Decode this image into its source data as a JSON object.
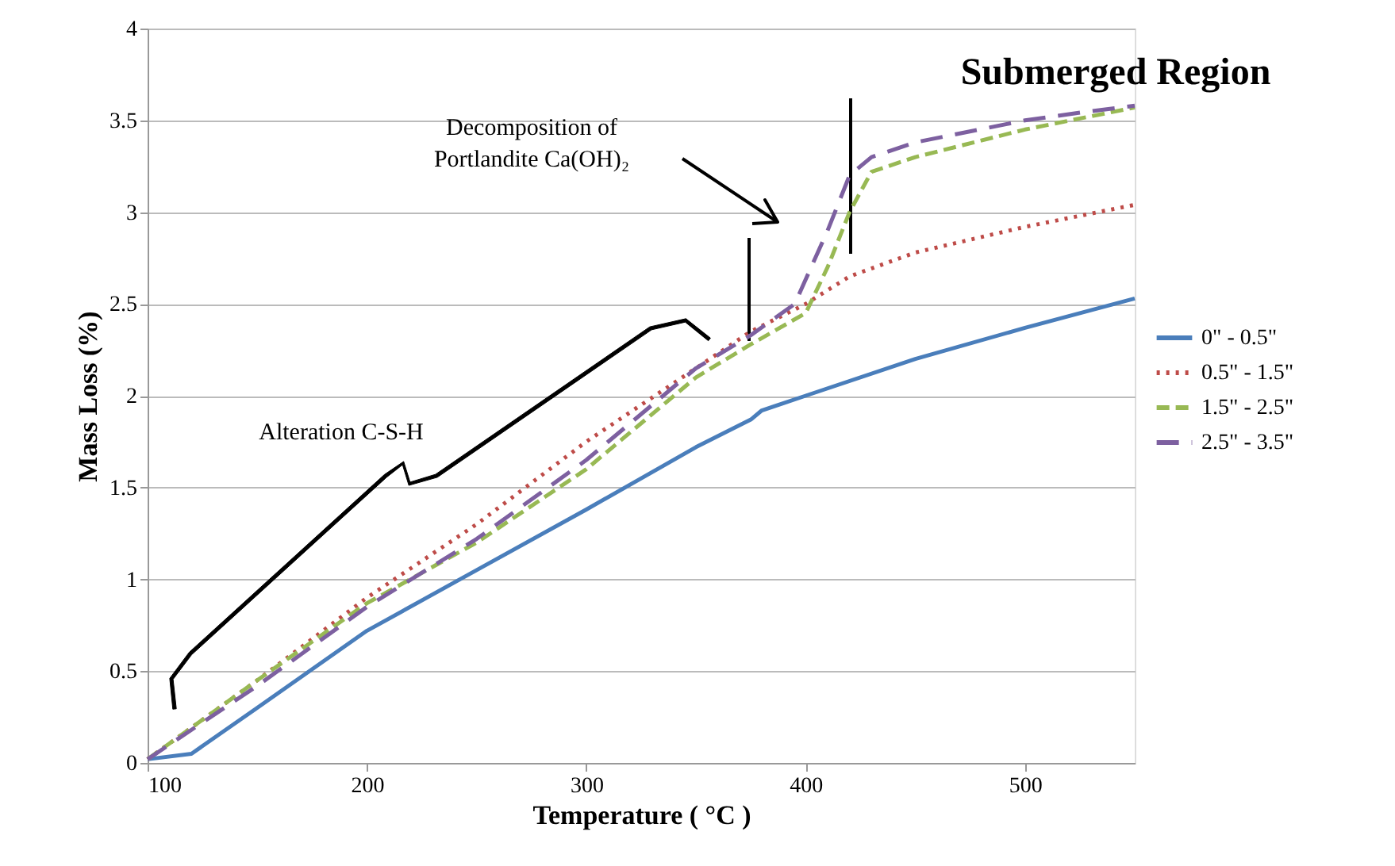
{
  "chart_data": {
    "type": "line",
    "title": "Submerged Region",
    "xlabel": "Temperature ( °C )",
    "ylabel": "Mass Loss (%)",
    "xlim": [
      100,
      550
    ],
    "xticks": [
      100,
      200,
      300,
      400,
      500
    ],
    "ylim": [
      0,
      4
    ],
    "yticks": [
      0,
      0.5,
      1,
      1.5,
      2,
      2.5,
      3,
      3.5,
      4
    ],
    "grid": "y",
    "legend": "right",
    "marker": "none",
    "annotations": [
      "Decomposition of\nPortlandite Ca(OH)₂",
      "Alteration C-S-H"
    ],
    "series": [
      {
        "name": "0\" - 0.5\"",
        "color": "#4a7ebb",
        "line_style": "solid",
        "x": [
          100,
          120,
          150,
          200,
          250,
          300,
          350,
          375,
          380,
          400,
          450,
          500,
          550
        ],
        "values": [
          0.02,
          0.05,
          0.3,
          0.72,
          1.05,
          1.38,
          1.72,
          1.87,
          1.92,
          2.0,
          2.2,
          2.37,
          2.53
        ]
      },
      {
        "name": "0.5\" - 1.5\"",
        "color": "#be4b48",
        "line_style": "dotted",
        "x": [
          100,
          150,
          200,
          250,
          300,
          350,
          375,
          400,
          420,
          450,
          500,
          550
        ],
        "values": [
          0.02,
          0.45,
          0.9,
          1.3,
          1.75,
          2.15,
          2.35,
          2.5,
          2.65,
          2.78,
          2.92,
          3.04
        ]
      },
      {
        "name": "1.5\" - 2.5\"",
        "color": "#98b954",
        "line_style": "dashed",
        "x": [
          100,
          150,
          200,
          250,
          300,
          350,
          375,
          400,
          410,
          420,
          430,
          450,
          500,
          550
        ],
        "values": [
          0.02,
          0.45,
          0.87,
          1.2,
          1.6,
          2.1,
          2.28,
          2.45,
          2.7,
          3.0,
          3.22,
          3.3,
          3.45,
          3.57
        ]
      },
      {
        "name": "2.5\" - 3.5\"",
        "color": "#7d60a0",
        "line_style": "dashed",
        "x": [
          100,
          150,
          200,
          250,
          300,
          350,
          375,
          395,
          410,
          420,
          430,
          450,
          500,
          530,
          550
        ],
        "values": [
          0.02,
          0.42,
          0.85,
          1.22,
          1.65,
          2.15,
          2.33,
          2.5,
          2.9,
          3.2,
          3.3,
          3.38,
          3.5,
          3.55,
          3.58
        ]
      }
    ]
  }
}
